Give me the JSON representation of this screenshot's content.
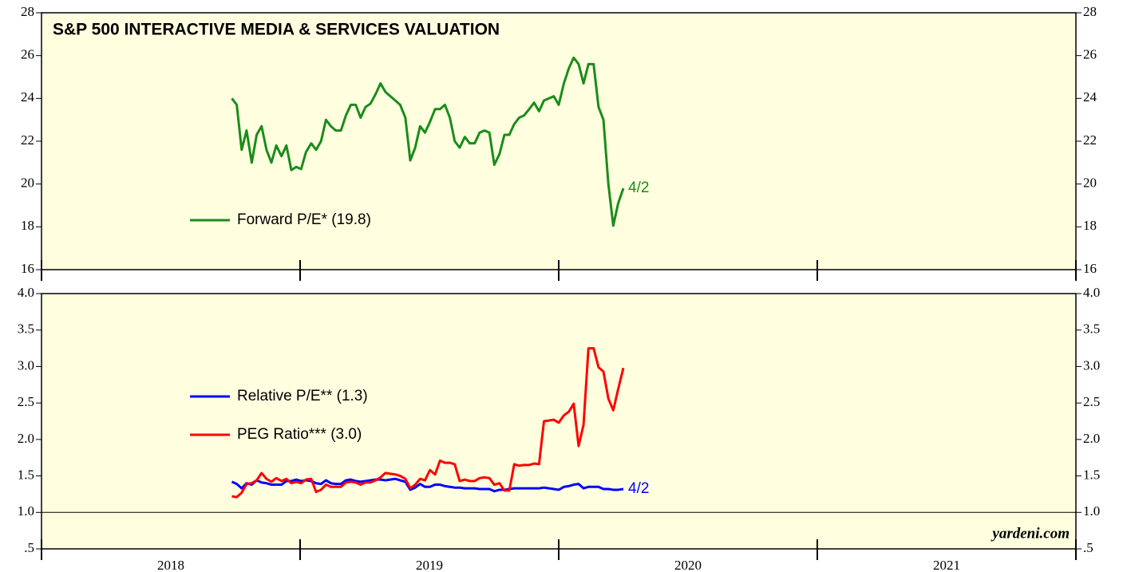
{
  "chart_data": [
    {
      "type": "line",
      "title": "S&P 500 INTERACTIVE MEDIA & SERVICES VALUATION",
      "x": [
        2018.736,
        2018.755,
        2018.774,
        2018.793,
        2018.813,
        2018.832,
        2018.851,
        2018.87,
        2018.889,
        2018.908,
        2018.928,
        2018.947,
        2018.966,
        2018.985,
        2019.004,
        2019.023,
        2019.043,
        2019.062,
        2019.081,
        2019.1,
        2019.119,
        2019.138,
        2019.158,
        2019.177,
        2019.196,
        2019.215,
        2019.234,
        2019.253,
        2019.272,
        2019.292,
        2019.311,
        2019.33,
        2019.349,
        2019.368,
        2019.387,
        2019.407,
        2019.426,
        2019.445,
        2019.464,
        2019.483,
        2019.502,
        2019.522,
        2019.541,
        2019.56,
        2019.579,
        2019.598,
        2019.617,
        2019.637,
        2019.656,
        2019.675,
        2019.694,
        2019.713,
        2019.732,
        2019.751,
        2019.771,
        2019.79,
        2019.809,
        2019.828,
        2019.847,
        2019.866,
        2019.886,
        2019.905,
        2019.924,
        2019.943,
        2019.962,
        2019.981,
        2020.0,
        2020.02,
        2020.039,
        2020.058,
        2020.077,
        2020.096,
        2020.115,
        2020.135,
        2020.154,
        2020.173,
        2020.192,
        2020.211,
        2020.23,
        2020.25
      ],
      "series": [
        {
          "name": "Forward P/E* (19.8)",
          "color": "#1a8c1a",
          "end_label": "4/2",
          "values": [
            24.0,
            23.7,
            21.6,
            22.5,
            21.0,
            22.3,
            22.7,
            21.6,
            21.0,
            21.8,
            21.3,
            21.8,
            20.65,
            20.8,
            20.7,
            21.5,
            21.9,
            21.6,
            22.0,
            23.0,
            22.7,
            22.5,
            22.5,
            23.2,
            23.7,
            23.7,
            23.1,
            23.6,
            23.75,
            24.2,
            24.7,
            24.3,
            24.1,
            23.9,
            23.7,
            23.1,
            21.1,
            21.7,
            22.7,
            22.4,
            22.9,
            23.5,
            23.5,
            23.7,
            23.1,
            22.0,
            21.7,
            22.2,
            21.9,
            21.9,
            22.4,
            22.5,
            22.4,
            20.9,
            21.4,
            22.3,
            22.3,
            22.8,
            23.1,
            23.2,
            23.5,
            23.8,
            23.4,
            23.9,
            24.0,
            24.1,
            23.7,
            24.7,
            25.4,
            25.9,
            25.6,
            24.7,
            25.6,
            25.6,
            23.6,
            23.0,
            20.0,
            18.05,
            19.1,
            19.8
          ]
        }
      ],
      "xlim": [
        2018,
        2022
      ],
      "xticks": [
        2018,
        2019,
        2020,
        2021,
        2022
      ],
      "ylim": [
        16,
        28
      ],
      "yticks": [
        16,
        18,
        20,
        22,
        24,
        26,
        28
      ],
      "legend": "left"
    },
    {
      "type": "line",
      "x": [
        2018.736,
        2018.755,
        2018.774,
        2018.793,
        2018.813,
        2018.832,
        2018.851,
        2018.87,
        2018.889,
        2018.908,
        2018.928,
        2018.947,
        2018.966,
        2018.985,
        2019.004,
        2019.023,
        2019.043,
        2019.062,
        2019.081,
        2019.1,
        2019.119,
        2019.138,
        2019.158,
        2019.177,
        2019.196,
        2019.215,
        2019.234,
        2019.253,
        2019.272,
        2019.292,
        2019.311,
        2019.33,
        2019.349,
        2019.368,
        2019.387,
        2019.407,
        2019.426,
        2019.445,
        2019.464,
        2019.483,
        2019.502,
        2019.522,
        2019.541,
        2019.56,
        2019.579,
        2019.598,
        2019.617,
        2019.637,
        2019.656,
        2019.675,
        2019.694,
        2019.713,
        2019.732,
        2019.751,
        2019.771,
        2019.79,
        2019.809,
        2019.828,
        2019.847,
        2019.866,
        2019.886,
        2019.905,
        2019.924,
        2019.943,
        2019.962,
        2019.981,
        2020.0,
        2020.02,
        2020.039,
        2020.058,
        2020.077,
        2020.096,
        2020.115,
        2020.135,
        2020.154,
        2020.173,
        2020.192,
        2020.211,
        2020.23,
        2020.25
      ],
      "series": [
        {
          "name": "Relative P/E** (1.3)",
          "color": "#0000ff",
          "end_label": "4/2",
          "values": [
            1.42,
            1.39,
            1.33,
            1.4,
            1.38,
            1.44,
            1.41,
            1.4,
            1.38,
            1.38,
            1.38,
            1.43,
            1.43,
            1.45,
            1.43,
            1.44,
            1.43,
            1.4,
            1.39,
            1.44,
            1.4,
            1.39,
            1.39,
            1.44,
            1.45,
            1.43,
            1.42,
            1.43,
            1.44,
            1.45,
            1.45,
            1.44,
            1.45,
            1.46,
            1.44,
            1.42,
            1.31,
            1.34,
            1.39,
            1.35,
            1.35,
            1.38,
            1.38,
            1.36,
            1.35,
            1.34,
            1.34,
            1.33,
            1.33,
            1.33,
            1.32,
            1.32,
            1.32,
            1.29,
            1.31,
            1.31,
            1.32,
            1.33,
            1.33,
            1.33,
            1.33,
            1.33,
            1.33,
            1.34,
            1.33,
            1.32,
            1.31,
            1.35,
            1.36,
            1.38,
            1.39,
            1.33,
            1.35,
            1.35,
            1.35,
            1.32,
            1.32,
            1.31,
            1.31,
            1.32
          ]
        },
        {
          "name": "PEG Ratio*** (3.0)",
          "color": "#ff0000",
          "values": [
            1.22,
            1.21,
            1.27,
            1.39,
            1.4,
            1.44,
            1.54,
            1.46,
            1.42,
            1.47,
            1.43,
            1.46,
            1.4,
            1.42,
            1.4,
            1.45,
            1.46,
            1.28,
            1.31,
            1.38,
            1.35,
            1.35,
            1.35,
            1.41,
            1.42,
            1.41,
            1.38,
            1.41,
            1.41,
            1.44,
            1.48,
            1.54,
            1.53,
            1.52,
            1.5,
            1.46,
            1.33,
            1.38,
            1.46,
            1.44,
            1.58,
            1.52,
            1.71,
            1.68,
            1.68,
            1.66,
            1.43,
            1.45,
            1.43,
            1.43,
            1.47,
            1.48,
            1.47,
            1.38,
            1.4,
            1.3,
            1.3,
            1.66,
            1.64,
            1.65,
            1.65,
            1.67,
            1.66,
            2.25,
            2.26,
            2.27,
            2.23,
            2.33,
            2.38,
            2.49,
            1.91,
            2.2,
            3.25,
            3.25,
            2.99,
            2.93,
            2.56,
            2.4,
            2.69,
            2.98
          ]
        }
      ],
      "xlim": [
        2018,
        2022
      ],
      "xticks": [
        2018,
        2019,
        2020,
        2021,
        2022
      ],
      "xlabels": [
        "2018",
        "2019",
        "2020",
        "2021"
      ],
      "ylim": [
        0.5,
        4.0
      ],
      "yticks": [
        {
          "value": 0.5,
          "label": ".5"
        },
        {
          "value": 1,
          "label": "1.0"
        },
        1.5,
        {
          "value": 2,
          "label": "2.0"
        },
        2.5,
        {
          "value": 3,
          "label": "3.0"
        },
        3.5,
        {
          "value": 4,
          "label": "4.0"
        }
      ],
      "hline": 1.0,
      "legend": "left",
      "source": "yardeni.com"
    }
  ]
}
